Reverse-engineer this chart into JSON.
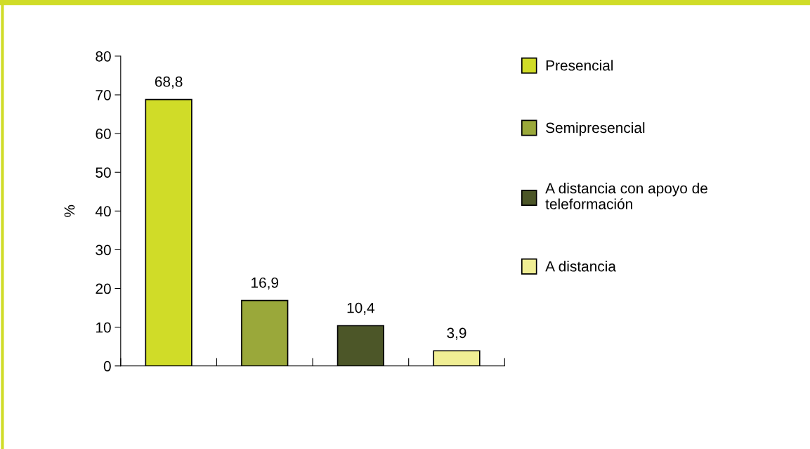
{
  "chart_data": {
    "type": "bar",
    "ylabel": "%",
    "categories": [
      null,
      null,
      null,
      null
    ],
    "series": [
      {
        "name": "Presencial",
        "color": "#d0dc28",
        "values": [
          68.8,
          null,
          null,
          null
        ],
        "value_labels": [
          "68,8",
          null,
          null,
          null
        ]
      },
      {
        "name": "Semipresencial",
        "color": "#9aa83a",
        "values": [
          null,
          16.9,
          null,
          null
        ],
        "value_labels": [
          null,
          "16,9",
          null,
          null
        ]
      },
      {
        "name": "A distancia con apoyo de teleformación",
        "color": "#4c5628",
        "values": [
          null,
          null,
          10.4,
          null
        ],
        "value_labels": [
          null,
          null,
          "10,4",
          null
        ]
      },
      {
        "name": "A distancia",
        "color": "#f0ee94",
        "values": [
          null,
          null,
          null,
          3.9
        ],
        "value_labels": [
          null,
          null,
          null,
          "3,9"
        ]
      }
    ],
    "ylim": [
      0,
      80
    ],
    "yticks": [
      0,
      10,
      20,
      30,
      40,
      50,
      60,
      70,
      80
    ],
    "grid": false,
    "legend": "right"
  }
}
